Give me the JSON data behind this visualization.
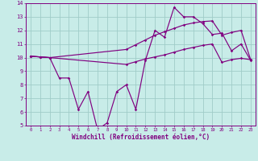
{
  "xlabel": "Windchill (Refroidissement éolien,°C)",
  "background_color": "#c8ece8",
  "grid_color": "#a0ccc8",
  "line_color": "#800080",
  "xlim": [
    -0.5,
    23.5
  ],
  "ylim": [
    5,
    14
  ],
  "yticks": [
    5,
    6,
    7,
    8,
    9,
    10,
    11,
    12,
    13,
    14
  ],
  "xticks": [
    0,
    1,
    2,
    3,
    4,
    5,
    6,
    7,
    8,
    9,
    10,
    11,
    12,
    13,
    14,
    15,
    16,
    17,
    18,
    19,
    20,
    21,
    22,
    23
  ],
  "line1_x": [
    0,
    1,
    2,
    3,
    4,
    5,
    6,
    7,
    8,
    9,
    10,
    11,
    12,
    13,
    14,
    15,
    16,
    17,
    18,
    19,
    20,
    21,
    22,
    23
  ],
  "line1_y": [
    10.1,
    10.05,
    10.0,
    8.5,
    8.5,
    6.2,
    7.5,
    4.7,
    5.2,
    7.5,
    8.0,
    6.2,
    9.8,
    12.0,
    11.5,
    13.7,
    13.0,
    13.0,
    12.5,
    11.7,
    11.8,
    10.5,
    11.0,
    9.8
  ],
  "line2_x": [
    0,
    1,
    2,
    10,
    11,
    12,
    13,
    14,
    15,
    16,
    17,
    18,
    19,
    20,
    21,
    22,
    23
  ],
  "line2_y": [
    10.1,
    10.05,
    10.0,
    10.6,
    10.95,
    11.3,
    11.65,
    11.9,
    12.15,
    12.4,
    12.55,
    12.65,
    12.7,
    11.65,
    11.85,
    12.0,
    9.85
  ],
  "line3_x": [
    0,
    1,
    2,
    10,
    11,
    12,
    13,
    14,
    15,
    16,
    17,
    18,
    19,
    20,
    21,
    22,
    23
  ],
  "line3_y": [
    10.1,
    10.05,
    10.0,
    9.5,
    9.7,
    9.9,
    10.05,
    10.2,
    10.4,
    10.6,
    10.75,
    10.9,
    11.0,
    9.65,
    9.85,
    9.95,
    9.85
  ]
}
